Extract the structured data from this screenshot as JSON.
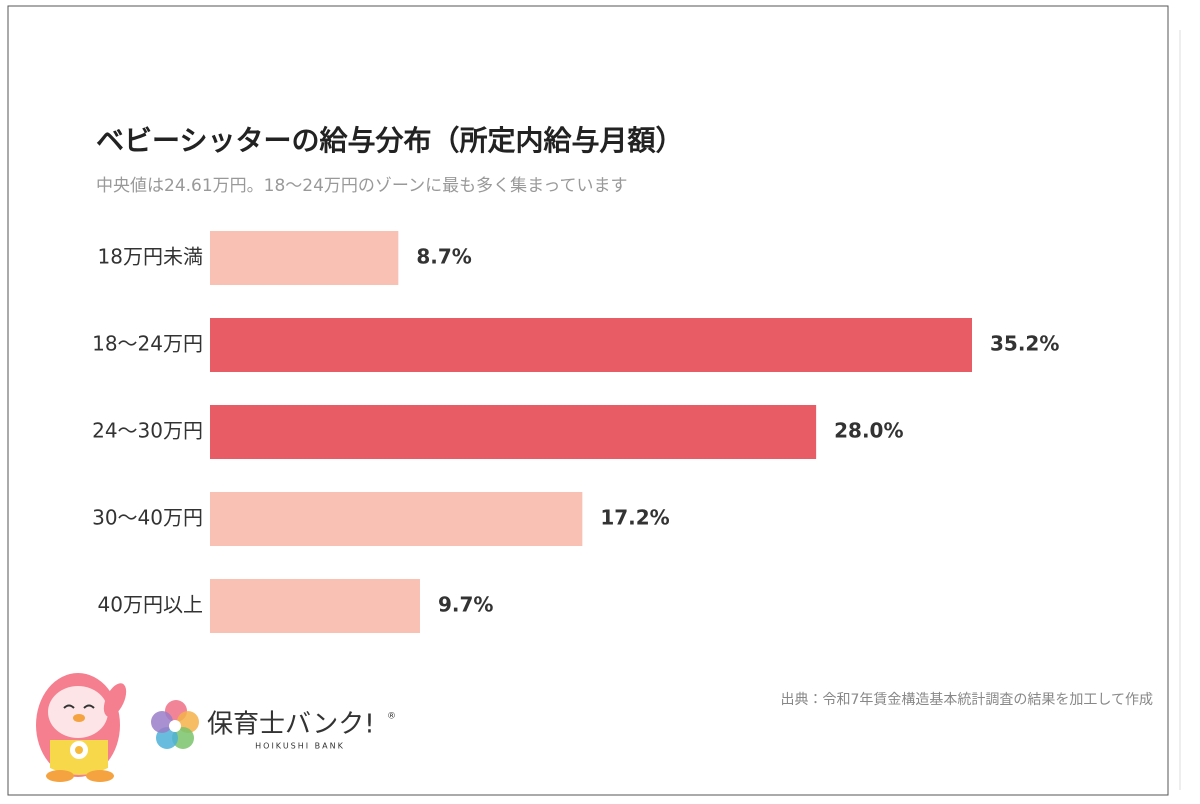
{
  "chart_data": {
    "type": "bar",
    "orientation": "horizontal",
    "title": "ベビーシッターの給与分布（所定内給与月額）",
    "subtitle": "中央値は24.61万円。18〜24万円のゾーンに最も多く集まっています",
    "categories": [
      "18万円未満",
      "18〜24万円",
      "24〜30万円",
      "30〜40万円",
      "40万円以上"
    ],
    "values": [
      8.7,
      35.2,
      28.0,
      17.2,
      9.7
    ],
    "value_labels": [
      "8.7%",
      "35.2%",
      "28.0%",
      "17.2%",
      "9.7%"
    ],
    "colors": [
      "#f9c1b4",
      "#e85c66",
      "#e85c66",
      "#f9c1b4",
      "#f9c1b4"
    ],
    "source": "出典：令和7年賃金構造基本統計調査の結果を加工して作成"
  },
  "brand": {
    "name": "保育士バンク!",
    "mark": "®",
    "tagline": "HOIKUSHI BANK"
  }
}
